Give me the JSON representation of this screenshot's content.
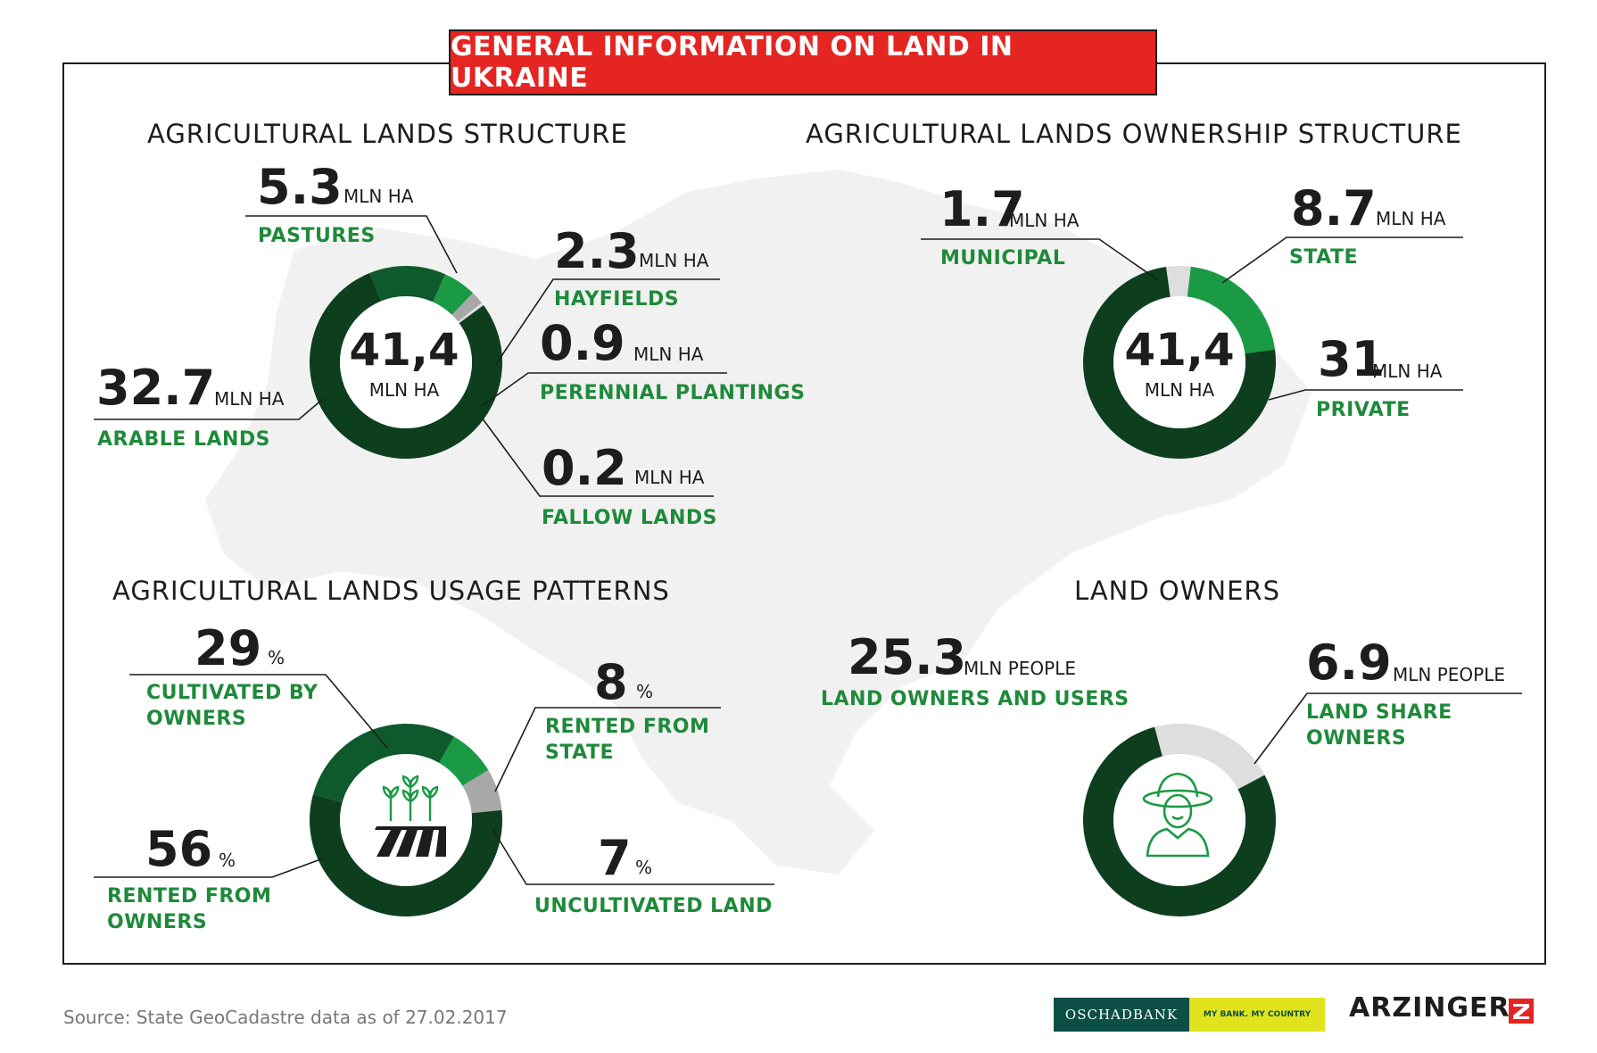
{
  "banner_title": "GENERAL INFORMATION ON LAND IN UKRAINE",
  "colors": {
    "dark_green": "#0d3f1f",
    "mid_green": "#0e5a2c",
    "bright_green": "#1a9a45",
    "light_green": "#6fc27f",
    "grey": "#a8a8a8",
    "light_grey": "#dedede",
    "red": "#e42521",
    "label_green": "#1e8a3a"
  },
  "chart_data": [
    {
      "type": "pie",
      "title": "AGRICULTURAL LANDS STRUCTURE",
      "center_value": "41,4",
      "center_unit": "MLN HA",
      "slices": [
        {
          "name": "ARABLE LANDS",
          "value": 32.7,
          "value_text": "32.7",
          "unit": "MLN HA",
          "color": "#0d3f1f"
        },
        {
          "name": "PASTURES",
          "value": 5.3,
          "value_text": "5.3",
          "unit": "MLN HA",
          "color": "#0e5a2c"
        },
        {
          "name": "HAYFIELDS",
          "value": 2.3,
          "value_text": "2.3",
          "unit": "MLN HA",
          "color": "#1a9a45"
        },
        {
          "name": "PERENNIAL PLANTINGS",
          "value": 0.9,
          "value_text": "0.9",
          "unit": "MLN HA",
          "color": "#a8a8a8"
        },
        {
          "name": "FALLOW LANDS",
          "value": 0.2,
          "value_text": "0.2",
          "unit": "MLN HA",
          "color": "#dedede"
        }
      ]
    },
    {
      "type": "pie",
      "title": "AGRICULTURAL LANDS OWNERSHIP STRUCTURE",
      "center_value": "41,4",
      "center_unit": "MLN HA",
      "slices": [
        {
          "name": "MUNICIPAL",
          "value": 1.7,
          "value_text": "1.7",
          "unit": "MLN HA",
          "color": "#dedede"
        },
        {
          "name": "STATE",
          "value": 8.7,
          "value_text": "8.7",
          "unit": "MLN HA",
          "color": "#1a9a45"
        },
        {
          "name": "PRIVATE",
          "value": 31,
          "value_text": "31",
          "unit": "MLN HA",
          "color": "#0d3f1f"
        }
      ]
    },
    {
      "type": "pie",
      "title": "AGRICULTURAL LANDS USAGE PATTERNS",
      "slices": [
        {
          "name": "CULTIVATED BY OWNERS",
          "value": 29,
          "value_text": "29",
          "unit": "%",
          "color": "#0e5a2c"
        },
        {
          "name": "RENTED FROM STATE",
          "value": 8,
          "value_text": "8",
          "unit": "%",
          "color": "#1a9a45"
        },
        {
          "name": "UNCULTIVATED LAND",
          "value": 7,
          "value_text": "7",
          "unit": "%",
          "color": "#a8a8a8"
        },
        {
          "name": "RENTED FROM OWNERS",
          "value": 56,
          "value_text": "56",
          "unit": "%",
          "color": "#0d3f1f"
        }
      ]
    },
    {
      "type": "pie",
      "title": "LAND OWNERS",
      "slices": [
        {
          "name": "LAND OWNERS AND USERS",
          "value": 25.3,
          "value_text": "25.3",
          "unit": "MLN PEOPLE",
          "color": "#0d3f1f"
        },
        {
          "name": "LAND SHARE OWNERS",
          "value": 6.9,
          "value_text": "6.9",
          "unit": "MLN PEOPLE",
          "color": "#dedede"
        }
      ]
    }
  ],
  "labels": {
    "pastures": {
      "value": "5.3",
      "unit": "MLN HA",
      "name": "PASTURES"
    },
    "hayfields": {
      "value": "2.3",
      "unit": "MLN HA",
      "name": "HAYFIELDS"
    },
    "perennial": {
      "value": "0.9",
      "unit": "MLN HA",
      "name": "PERENNIAL PLANTINGS"
    },
    "fallow": {
      "value": "0.2",
      "unit": "MLN HA",
      "name": "FALLOW LANDS"
    },
    "arable": {
      "value": "32.7",
      "unit": "MLN HA",
      "name": "ARABLE LANDS"
    },
    "municipal": {
      "value": "1.7",
      "unit": "MLN HA",
      "name": "MUNICIPAL"
    },
    "state": {
      "value": "8.7",
      "unit": "MLN HA",
      "name": "STATE"
    },
    "private": {
      "value": "31",
      "unit": "MLN HA",
      "name": "PRIVATE"
    },
    "cultivated": {
      "value": "29",
      "unit": "%",
      "name_line1": "CULTIVATED BY",
      "name_line2": "OWNERS"
    },
    "rented_state": {
      "value": "8",
      "unit": "%",
      "name_line1": "RENTED FROM",
      "name_line2": "STATE"
    },
    "uncultivated": {
      "value": "7",
      "unit": "%",
      "name": "UNCULTIVATED LAND"
    },
    "rented_owners": {
      "value": "56",
      "unit": "%",
      "name_line1": "RENTED FROM",
      "name_line2": "OWNERS"
    },
    "owners_users": {
      "value": "25.3",
      "unit": "MLN PEOPLE",
      "name": "LAND OWNERS AND USERS"
    },
    "share_owners": {
      "value": "6.9",
      "unit": "MLN PEOPLE",
      "name_line1": "LAND SHARE",
      "name_line2": "OWNERS"
    }
  },
  "icons": {
    "usage_center": "wheat-field-icon",
    "owners_center": "farmer-icon"
  },
  "footer": {
    "source": "Source: State GeoCadastre data as of 27.02.2017",
    "bank_name": "OSCHADBANK",
    "bank_tagline": "MY BANK. MY COUNTRY",
    "brand": "ARZINGER"
  }
}
